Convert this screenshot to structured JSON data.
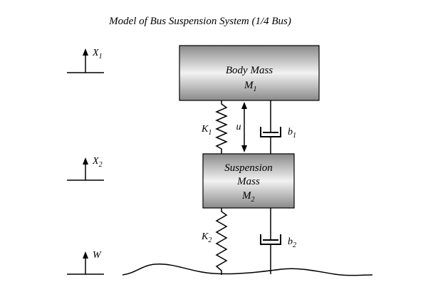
{
  "title": "Model of Bus Suspension System (1/4 Bus)",
  "body_mass": {
    "line1": "Body Mass",
    "symbol": "M",
    "subscript": "1"
  },
  "suspension_mass": {
    "line1": "Suspension",
    "line2": "Mass",
    "symbol": "M",
    "subscript": "2"
  },
  "spring_upper": {
    "symbol": "K",
    "subscript": "1"
  },
  "spring_lower": {
    "symbol": "K",
    "subscript": "2"
  },
  "damper_upper": {
    "symbol": "b",
    "subscript": "1"
  },
  "damper_lower": {
    "symbol": "b",
    "subscript": "2"
  },
  "control_force": {
    "symbol": "u"
  },
  "displacement_x1": {
    "symbol": "X",
    "subscript": "1"
  },
  "displacement_x2": {
    "symbol": "X",
    "subscript": "2"
  },
  "road_input_w": {
    "symbol": "W"
  },
  "colors": {
    "stroke": "#000000",
    "mass_dark": "#8a8a8a",
    "mass_light": "#f2f2f2"
  }
}
